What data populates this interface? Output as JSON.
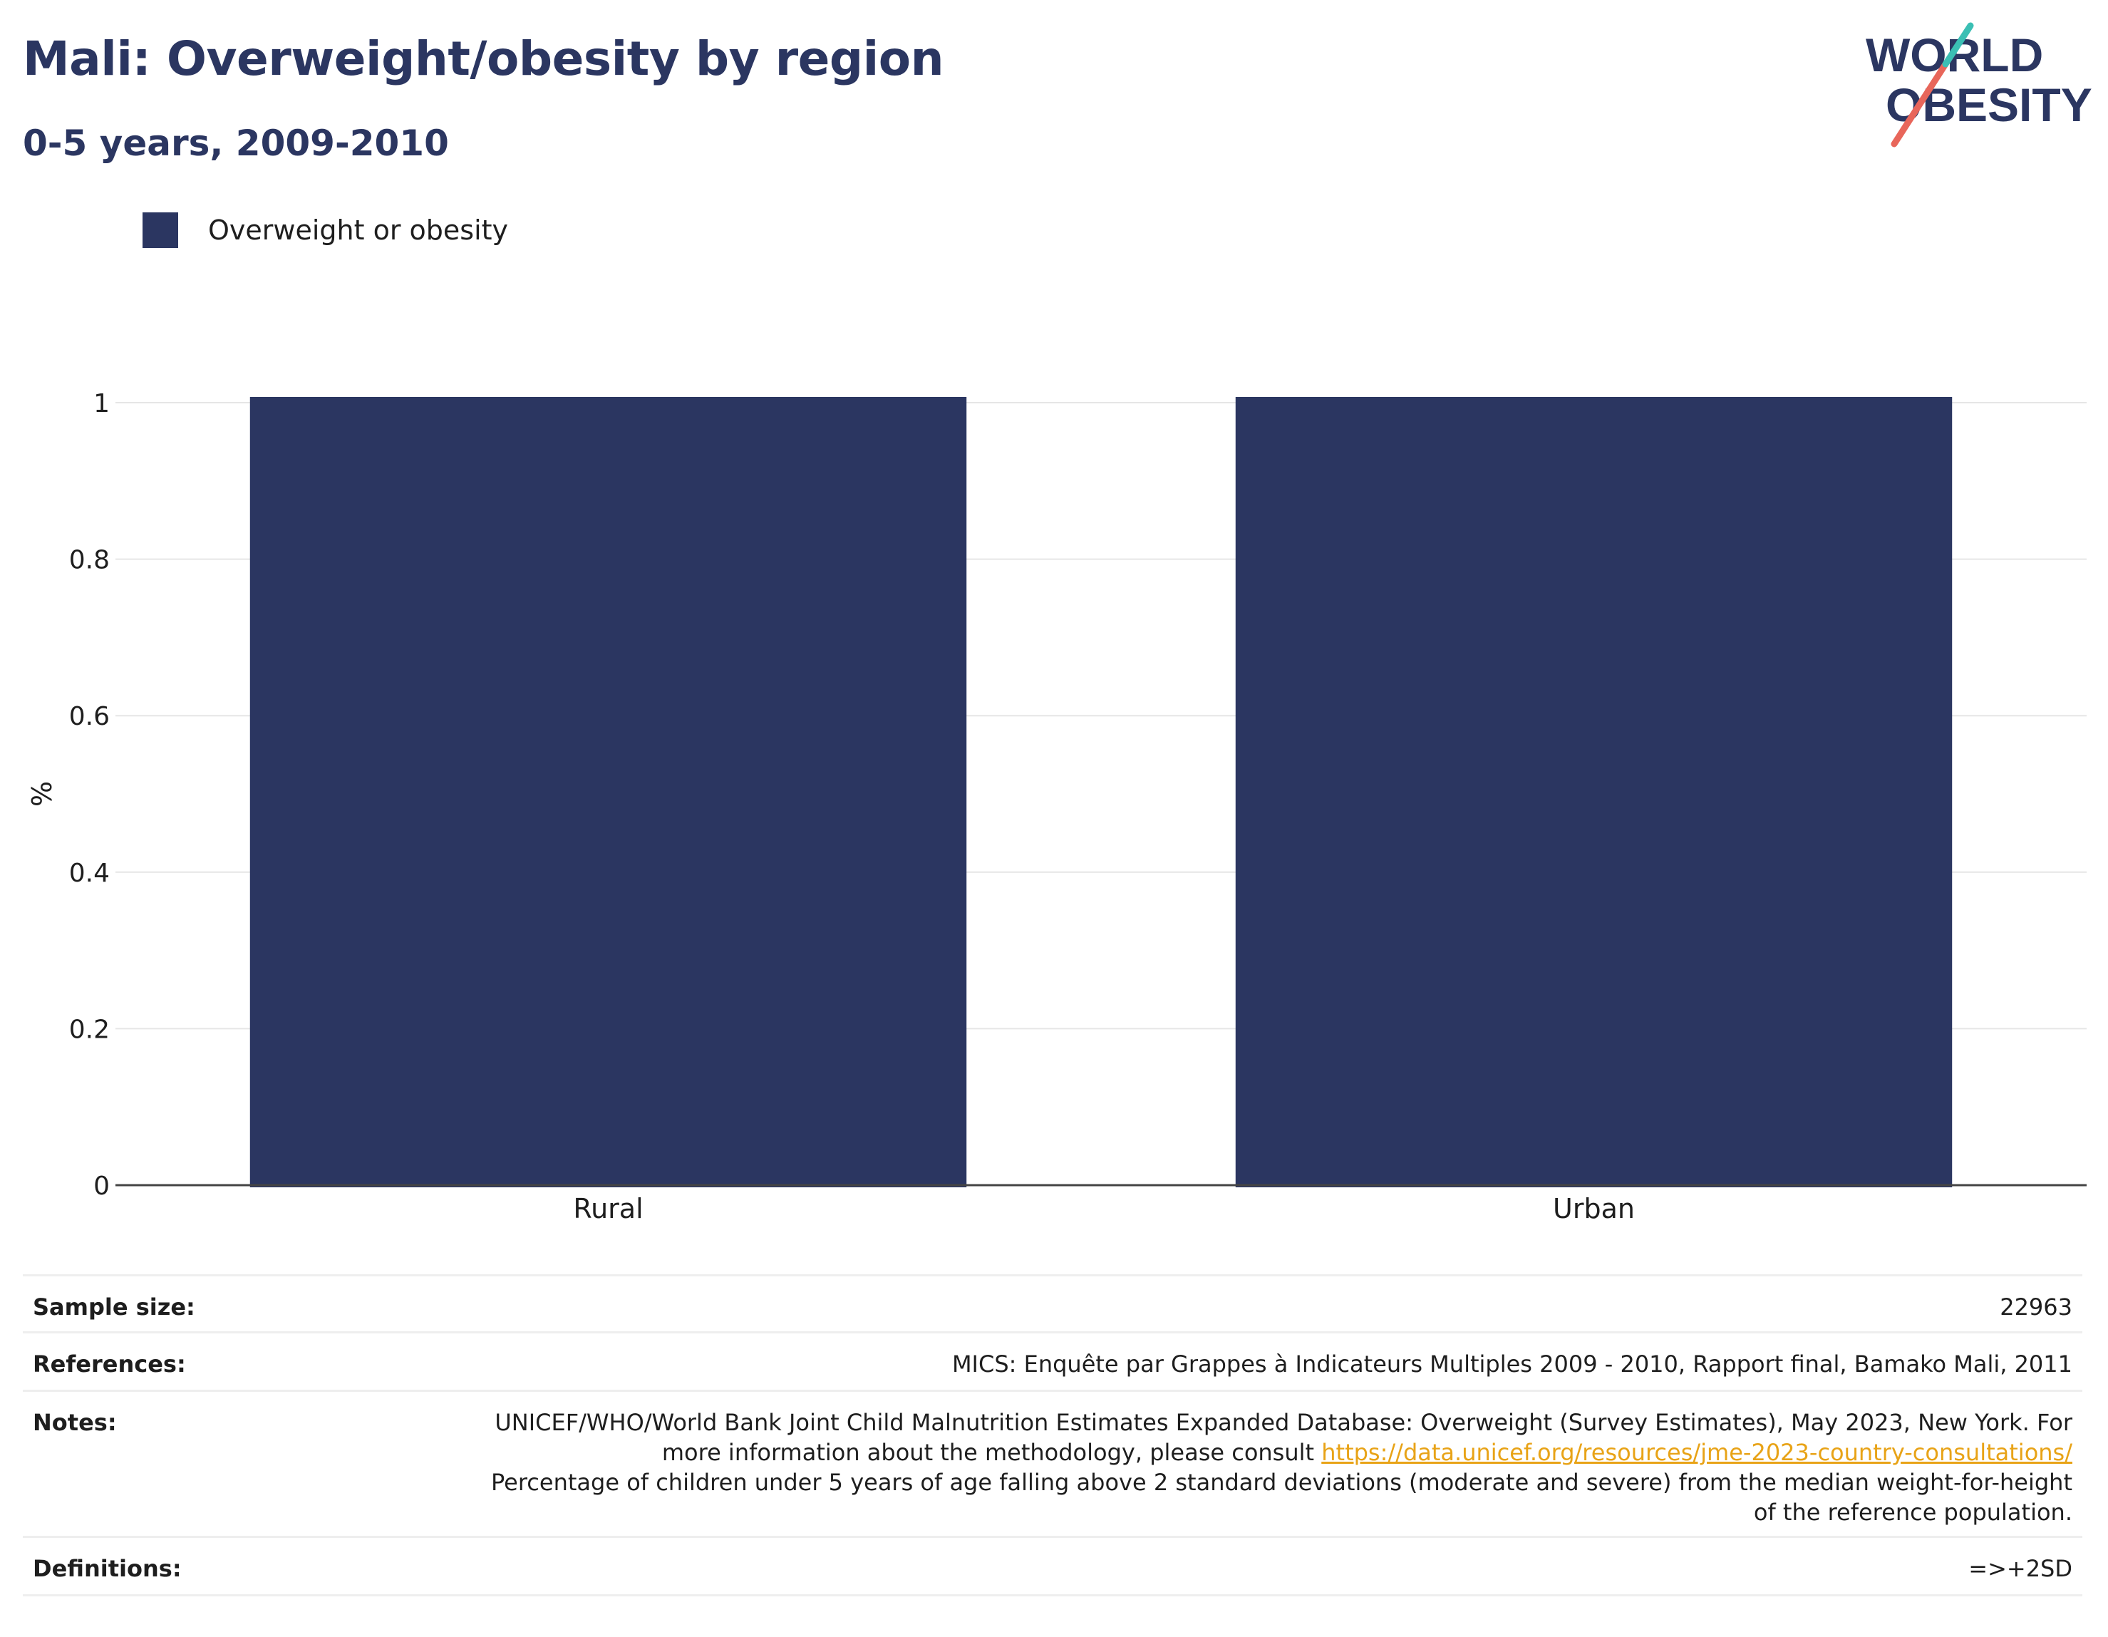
{
  "header": {
    "title": "Mali: Overweight/obesity by region",
    "subtitle": "0-5 years, 2009-2010"
  },
  "logo": {
    "line1": "WORLD",
    "line2": "OBESITY",
    "text_color": "#2b3661",
    "accent_teal": "#3bbfb4",
    "accent_red": "#e8665a"
  },
  "legend": {
    "items": [
      {
        "label": "Overweight or obesity",
        "color": "#2b3661"
      }
    ]
  },
  "chart_data": {
    "type": "bar",
    "categories": [
      "Rural",
      "Urban"
    ],
    "series": [
      {
        "name": "Overweight or obesity",
        "values": [
          1,
          1
        ],
        "color": "#2b3661"
      }
    ],
    "ylabel": "%",
    "xlabel": "",
    "ylim": [
      0,
      1
    ],
    "yticks": [
      "0",
      "0.2",
      "0.4",
      "0.6",
      "0.8",
      "1"
    ],
    "grid": true
  },
  "footer": {
    "sample_size": {
      "label": "Sample size:",
      "value": "22963"
    },
    "references": {
      "label": "References:",
      "value": "MICS: Enquête par Grappes à Indicateurs Multiples 2009 - 2010, Rapport final, Bamako Mali, 2011"
    },
    "notes": {
      "label": "Notes:",
      "text_before": "UNICEF/WHO/World Bank Joint Child Malnutrition Estimates Expanded Database: Overweight (Survey Estimates), May 2023, New York. For more information about the methodology, please consult ",
      "link": "https://data.unicef.org/resources/jme-2023-country-consultations/",
      "text_after": "Percentage of children under 5 years of age falling above 2 standard deviations (moderate and severe) from the median weight-for-height of the reference population."
    },
    "definitions": {
      "label": "Definitions:",
      "value": "=>+2SD"
    }
  }
}
